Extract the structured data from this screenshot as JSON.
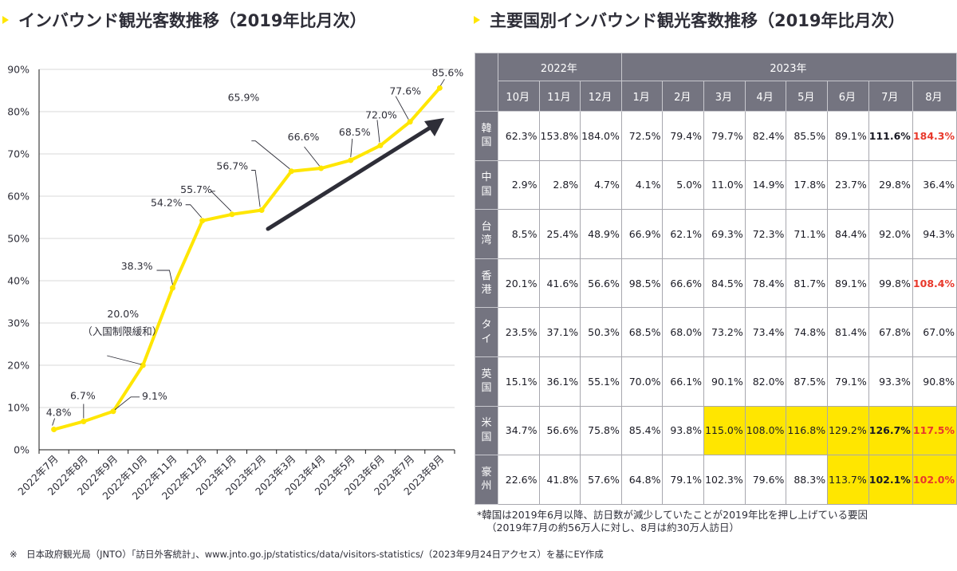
{
  "titles": {
    "left": "インバウンド観光客数推移（2019年比月次）",
    "right": "主要国別インバウンド観光客数推移（2019年比月次）"
  },
  "colors": {
    "accent_yellow": "#ffe600",
    "header_gray": "#747480",
    "text_dark": "#2e2e38",
    "highlight_red": "#e8382b",
    "arrow": "#2e2e38"
  },
  "chart_data": {
    "type": "line",
    "title": "インバウンド観光客数推移（2019年比月次）",
    "xlabel": "",
    "ylabel": "",
    "ylim": [
      0,
      90
    ],
    "y_ticks": [
      "0%",
      "10%",
      "20%",
      "30%",
      "40%",
      "50%",
      "60%",
      "70%",
      "80%",
      "90%"
    ],
    "grid": true,
    "categories": [
      "2022年7月",
      "2022年8月",
      "2022年9月",
      "2022年10月",
      "2022年11月",
      "2022年12月",
      "2023年1月",
      "2023年2月",
      "2023年3月",
      "2023年4月",
      "2023年5月",
      "2023年6月",
      "2023年7月",
      "2023年8月"
    ],
    "series": [
      {
        "name": "2019年比",
        "color": "#ffe600",
        "values": [
          4.8,
          6.7,
          9.1,
          20.0,
          38.3,
          54.2,
          55.7,
          56.7,
          65.9,
          66.6,
          68.5,
          72.0,
          77.6,
          85.6
        ],
        "labels": [
          "4.8%",
          "6.7%",
          "9.1%",
          "20.0%",
          "38.3%",
          "54.2%",
          "55.7%",
          "56.7%",
          "65.9%",
          "66.6%",
          "68.5%",
          "72.0%",
          "77.6%",
          "85.6%"
        ]
      }
    ],
    "annotations": [
      {
        "category": "2022年10月",
        "text": "（入国制限緩和）"
      },
      {
        "type": "trend-arrow",
        "text": "upward trend"
      }
    ]
  },
  "table": {
    "years": [
      {
        "label": "2022年",
        "span": 3
      },
      {
        "label": "2023年",
        "span": 8
      }
    ],
    "months": [
      "10月",
      "11月",
      "12月",
      "1月",
      "2月",
      "3月",
      "4月",
      "5月",
      "6月",
      "7月",
      "8月"
    ],
    "rows": [
      {
        "country": "韓国",
        "values": [
          "62.3%",
          "153.8%",
          "184.0%",
          "72.5%",
          "79.4%",
          "79.7%",
          "82.4%",
          "85.5%",
          "89.1%",
          "111.6%",
          "184.3%"
        ],
        "highlight": [],
        "bold": [
          9
        ],
        "red": [
          10
        ]
      },
      {
        "country": "中国",
        "values": [
          "2.9%",
          "2.8%",
          "4.7%",
          "4.1%",
          "5.0%",
          "11.0%",
          "14.9%",
          "17.8%",
          "23.7%",
          "29.8%",
          "36.4%"
        ],
        "highlight": [],
        "bold": [],
        "red": []
      },
      {
        "country": "台湾",
        "values": [
          "8.5%",
          "25.4%",
          "48.9%",
          "66.9%",
          "62.1%",
          "69.3%",
          "72.3%",
          "71.1%",
          "84.4%",
          "92.0%",
          "94.3%"
        ],
        "highlight": [],
        "bold": [],
        "red": []
      },
      {
        "country": "香港",
        "values": [
          "20.1%",
          "41.6%",
          "56.6%",
          "98.5%",
          "66.6%",
          "84.5%",
          "78.4%",
          "81.7%",
          "89.1%",
          "99.8%",
          "108.4%"
        ],
        "highlight": [],
        "bold": [],
        "red": [
          10
        ]
      },
      {
        "country": "タイ",
        "values": [
          "23.5%",
          "37.1%",
          "50.3%",
          "68.5%",
          "68.0%",
          "73.2%",
          "73.4%",
          "74.8%",
          "81.4%",
          "67.8%",
          "67.0%"
        ],
        "highlight": [],
        "bold": [],
        "red": []
      },
      {
        "country": "英国",
        "values": [
          "15.1%",
          "36.1%",
          "55.1%",
          "70.0%",
          "66.1%",
          "90.1%",
          "82.0%",
          "87.5%",
          "79.1%",
          "93.3%",
          "90.8%"
        ],
        "highlight": [],
        "bold": [],
        "red": []
      },
      {
        "country": "米国",
        "values": [
          "34.7%",
          "56.6%",
          "75.8%",
          "85.4%",
          "93.8%",
          "115.0%",
          "108.0%",
          "116.8%",
          "129.2%",
          "126.7%",
          "117.5%"
        ],
        "highlight": [
          5,
          6,
          7,
          8,
          9,
          10
        ],
        "bold": [
          9
        ],
        "red": [
          10
        ]
      },
      {
        "country": "豪州",
        "values": [
          "22.6%",
          "41.8%",
          "57.6%",
          "64.8%",
          "79.1%",
          "102.3%",
          "79.6%",
          "88.3%",
          "113.7%",
          "102.1%",
          "102.0%"
        ],
        "highlight": [
          8,
          9,
          10
        ],
        "bold": [
          9
        ],
        "red": [
          10
        ]
      }
    ]
  },
  "notes": {
    "line1": "*韓国は2019年6月以降、訪日数が減少していたことが2019年比を押し上げている要因",
    "line2": "（2019年7月の約56万人に対し、8月は約30万人訪日）"
  },
  "source": "※　日本政府観光局（JNTO）「訪日外客統計」、www.jnto.go.jp/statistics/data/visitors-statistics/（2023年9月24日アクセス）を基にEY作成"
}
